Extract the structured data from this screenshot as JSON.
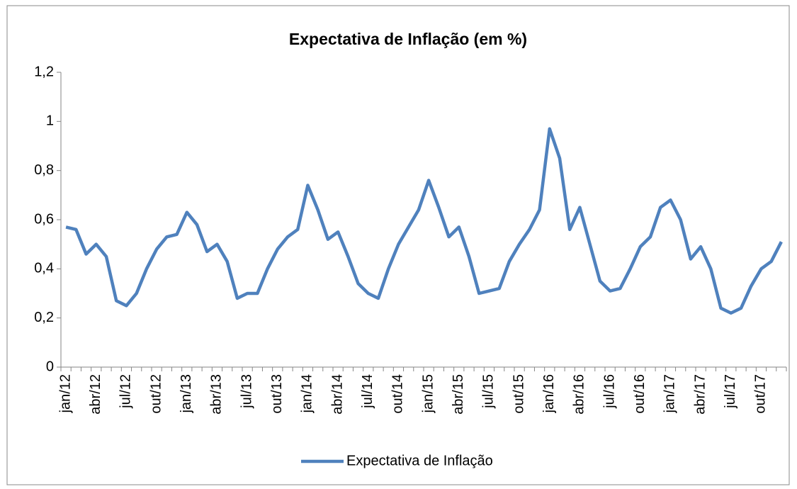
{
  "chart_data": {
    "type": "line",
    "title": "Expectativa de Inflação (em %)",
    "categories": [
      "jan/12",
      null,
      null,
      "abr/12",
      null,
      null,
      "jul/12",
      null,
      null,
      "out/12",
      null,
      null,
      "jan/13",
      null,
      null,
      "abr/13",
      null,
      null,
      "jul/13",
      null,
      null,
      "out/13",
      null,
      null,
      "jan/14",
      null,
      null,
      "abr/14",
      null,
      null,
      "jul/14",
      null,
      null,
      "out/14",
      null,
      null,
      "jan/15",
      null,
      null,
      "abr/15",
      null,
      null,
      "jul/15",
      null,
      null,
      "out/15",
      null,
      null,
      "jan/16",
      null,
      null,
      "abr/16",
      null,
      null,
      "jul/16",
      null,
      null,
      "out/16",
      null,
      null,
      "jan/17",
      null,
      null,
      "abr/17",
      null,
      null,
      "jul/17",
      null,
      null,
      "out/17",
      null,
      null
    ],
    "series": [
      {
        "name": "Expectativa de Inflação",
        "color": "#4f81bd",
        "values": [
          0.57,
          0.56,
          0.46,
          0.5,
          0.45,
          0.27,
          0.25,
          0.3,
          0.4,
          0.48,
          0.53,
          0.54,
          0.63,
          0.58,
          0.47,
          0.5,
          0.43,
          0.28,
          0.3,
          0.3,
          0.4,
          0.48,
          0.53,
          0.56,
          0.74,
          0.64,
          0.52,
          0.55,
          0.45,
          0.34,
          0.3,
          0.28,
          0.4,
          0.5,
          0.57,
          0.64,
          0.76,
          0.65,
          0.53,
          0.57,
          0.45,
          0.3,
          0.31,
          0.32,
          0.43,
          0.5,
          0.56,
          0.64,
          0.97,
          0.85,
          0.56,
          0.65,
          0.5,
          0.35,
          0.31,
          0.32,
          0.4,
          0.49,
          0.53,
          0.65,
          0.68,
          0.6,
          0.44,
          0.49,
          0.4,
          0.24,
          0.22,
          0.24,
          0.33,
          0.4,
          0.43,
          0.51
        ]
      }
    ],
    "ylim": [
      0,
      1.2
    ],
    "yticks": [
      0,
      {
        "value": 0.2,
        "label": "0,2"
      },
      {
        "value": 0.4,
        "label": "0,4"
      },
      {
        "value": 0.6,
        "label": "0,6"
      },
      {
        "value": 0.8,
        "label": "0,8"
      },
      1,
      {
        "value": 1.2,
        "label": "1,2"
      }
    ],
    "legend": "bottom"
  }
}
